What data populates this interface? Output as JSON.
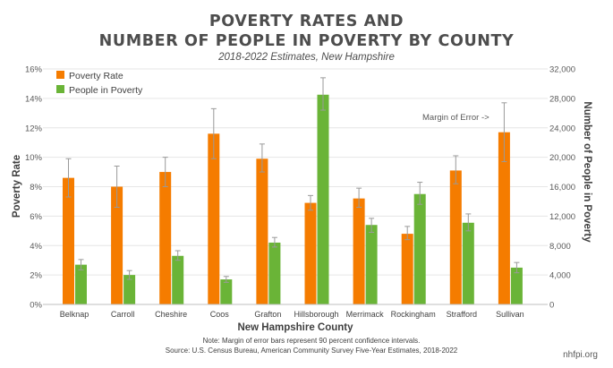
{
  "chart_data": {
    "type": "bar",
    "title_line1": "POVERTY RATES AND",
    "title_line2": "NUMBER OF PEOPLE IN POVERTY BY COUNTY",
    "subtitle": "2018-2022 Estimates, New Hampshire",
    "xlabel": "New Hampshire County",
    "ylabel_left": "Poverty Rate",
    "ylabel_right": "Number of People in Poverty",
    "ylim_left": [
      0,
      16
    ],
    "ylim_right": [
      0,
      32000
    ],
    "yticks_left": [
      "0%",
      "2%",
      "4%",
      "6%",
      "8%",
      "10%",
      "12%",
      "14%",
      "16%"
    ],
    "yticks_right": [
      "0",
      "4,000",
      "8,000",
      "12,000",
      "16,000",
      "20,000",
      "24,000",
      "28,000",
      "32,000"
    ],
    "categories": [
      "Belknap",
      "Carroll",
      "Cheshire",
      "Coos",
      "Grafton",
      "Hillsborough",
      "Merrimack",
      "Rockingham",
      "Strafford",
      "Sullivan"
    ],
    "series": [
      {
        "name": "Poverty Rate",
        "axis": "left",
        "color": "#f57c00",
        "values": [
          8.6,
          8.0,
          9.0,
          11.6,
          9.9,
          6.9,
          7.2,
          4.8,
          9.1,
          11.7
        ],
        "error_low": [
          7.3,
          6.6,
          8.0,
          9.9,
          9.0,
          6.4,
          6.6,
          4.4,
          8.2,
          9.7
        ],
        "error_high": [
          9.9,
          9.4,
          10.0,
          13.3,
          10.9,
          7.4,
          7.9,
          5.3,
          10.1,
          13.7
        ]
      },
      {
        "name": "People in Poverty",
        "axis": "right",
        "color": "#6ab437",
        "values": [
          5400,
          4000,
          6600,
          3400,
          8400,
          28500,
          10800,
          15000,
          11100,
          5000
        ],
        "error_low": [
          4700,
          3400,
          6000,
          3000,
          7800,
          26400,
          9800,
          13600,
          10000,
          4300
        ],
        "error_high": [
          6100,
          4600,
          7300,
          3800,
          9100,
          30800,
          11700,
          16600,
          12300,
          5700
        ]
      }
    ],
    "annotation": "Margin of Error ->",
    "legend_position": "top-left"
  },
  "footer": {
    "note": "Note: Margin of error bars represent 90 percent confidence intervals.",
    "source": "Source: U.S. Census Bureau, American Community Survey Five-Year Estimates, 2018-2022",
    "credit": "nhfpi.org"
  }
}
